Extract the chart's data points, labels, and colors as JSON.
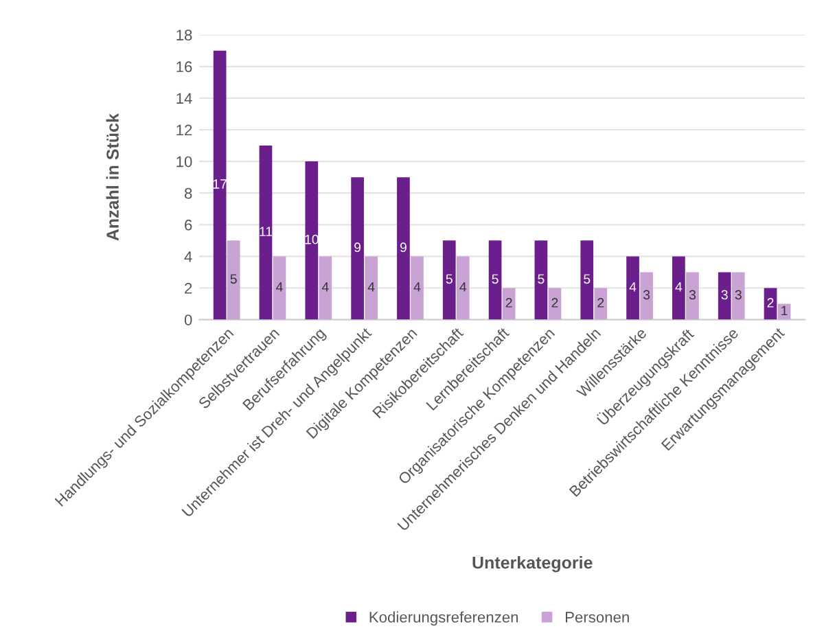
{
  "chart_data": {
    "type": "bar",
    "xlabel": "Unterkategorie",
    "ylabel": "Anzahl in Stück",
    "categories": [
      "Handlungs- und Sozialkompetenzen",
      "Selbstvertrauen",
      "Berufserfahrung",
      "Unternehmer ist Dreh- und Angelpunkt",
      "Digitale Kompetenzen",
      "Risikobereitschaft",
      "Lernbereitschaft",
      "Organisatorische Kompetenzen",
      "Unternehmerisches Denken und Handeln",
      "Willensstärke",
      "Überzeugungskraft",
      "Betriebswirtschaftliche Kenntnisse",
      "Erwartungsmanagement"
    ],
    "series": [
      {
        "name": "Kodierungsreferenzen",
        "color": "#6a1f8c",
        "values": [
          17,
          11,
          10,
          9,
          9,
          5,
          5,
          5,
          5,
          4,
          4,
          3,
          2
        ]
      },
      {
        "name": "Personen",
        "color": "#c9a3d4",
        "values": [
          5,
          4,
          4,
          4,
          4,
          4,
          2,
          2,
          2,
          3,
          3,
          3,
          1
        ]
      }
    ],
    "ylim": [
      0,
      18
    ],
    "yticks": [
      0,
      2,
      4,
      6,
      8,
      10,
      12,
      14,
      16,
      18
    ],
    "grid": "y",
    "legend": "bottom",
    "data_labels": true
  }
}
